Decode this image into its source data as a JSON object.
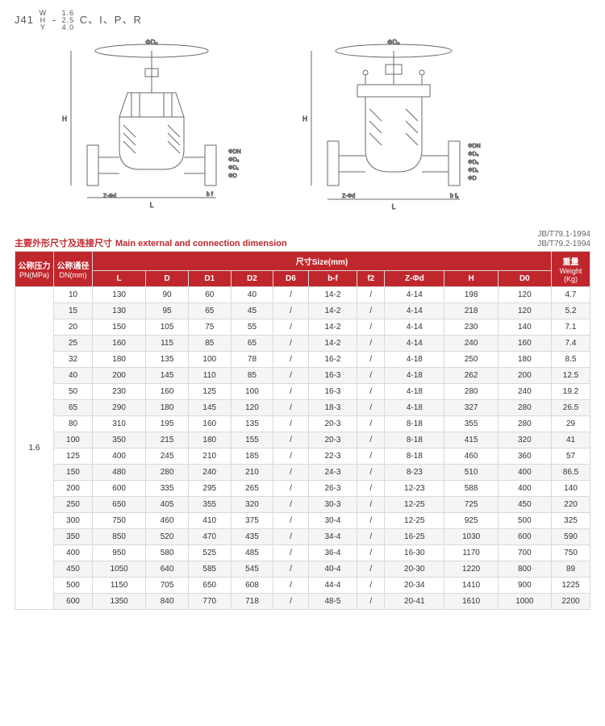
{
  "model": {
    "prefix": "J41",
    "stack_top": "W",
    "stack_mid": "H",
    "stack_bot": "Y",
    "frac_top": "1.6",
    "frac_mid": "2.5",
    "frac_bot": "4.0",
    "suffix": "C、I、P、R"
  },
  "caption": {
    "cn": "主要外形尺寸及连接尺寸",
    "en": "Main external and connection dimension"
  },
  "standards": {
    "a": "JB/T79.1-1994",
    "b": "JB/T79.2-1994"
  },
  "header": {
    "pn": "公称压力",
    "pn_unit": "PN(MPa)",
    "dn": "公称通径",
    "dn_unit": "DN(mm)",
    "size": "尺寸Size(mm)",
    "weight": "重量",
    "weight_unit": "Weight",
    "weight_kg": "(Kg)",
    "cols": [
      "L",
      "D",
      "D1",
      "D2",
      "D6",
      "b-f",
      "f2",
      "Z-Φd",
      "H",
      "D0"
    ]
  },
  "table": {
    "pn_value": "1.6",
    "columns": [
      "DN",
      "L",
      "D",
      "D1",
      "D2",
      "D6",
      "b-f",
      "f2",
      "Z-Φd",
      "H",
      "D0",
      "Weight"
    ],
    "rows": [
      [
        "10",
        "130",
        "90",
        "60",
        "40",
        "/",
        "14-2",
        "/",
        "4-14",
        "198",
        "120",
        "4.7"
      ],
      [
        "15",
        "130",
        "95",
        "65",
        "45",
        "/",
        "14-2",
        "/",
        "4-14",
        "218",
        "120",
        "5.2"
      ],
      [
        "20",
        "150",
        "105",
        "75",
        "55",
        "/",
        "14-2",
        "/",
        "4-14",
        "230",
        "140",
        "7.1"
      ],
      [
        "25",
        "160",
        "115",
        "85",
        "65",
        "/",
        "14-2",
        "/",
        "4-14",
        "240",
        "160",
        "7.4"
      ],
      [
        "32",
        "180",
        "135",
        "100",
        "78",
        "/",
        "16-2",
        "/",
        "4-18",
        "250",
        "180",
        "8.5"
      ],
      [
        "40",
        "200",
        "145",
        "110",
        "85",
        "/",
        "16-3",
        "/",
        "4-18",
        "262",
        "200",
        "12.5"
      ],
      [
        "50",
        "230",
        "160",
        "125",
        "100",
        "/",
        "16-3",
        "/",
        "4-18",
        "280",
        "240",
        "19.2"
      ],
      [
        "65",
        "290",
        "180",
        "145",
        "120",
        "/",
        "18-3",
        "/",
        "4-18",
        "327",
        "280",
        "26.5"
      ],
      [
        "80",
        "310",
        "195",
        "160",
        "135",
        "/",
        "20-3",
        "/",
        "8-18",
        "355",
        "280",
        "29"
      ],
      [
        "100",
        "350",
        "215",
        "180",
        "155",
        "/",
        "20-3",
        "/",
        "8-18",
        "415",
        "320",
        "41"
      ],
      [
        "125",
        "400",
        "245",
        "210",
        "185",
        "/",
        "22-3",
        "/",
        "8-18",
        "460",
        "360",
        "57"
      ],
      [
        "150",
        "480",
        "280",
        "240",
        "210",
        "/",
        "24-3",
        "/",
        "8-23",
        "510",
        "400",
        "86.5"
      ],
      [
        "200",
        "600",
        "335",
        "295",
        "265",
        "/",
        "26-3",
        "/",
        "12-23",
        "588",
        "400",
        "140"
      ],
      [
        "250",
        "650",
        "405",
        "355",
        "320",
        "/",
        "30-3",
        "/",
        "12-25",
        "725",
        "450",
        "220"
      ],
      [
        "300",
        "750",
        "460",
        "410",
        "375",
        "/",
        "30-4",
        "/",
        "12-25",
        "925",
        "500",
        "325"
      ],
      [
        "350",
        "850",
        "520",
        "470",
        "435",
        "/",
        "34-4",
        "/",
        "16-25",
        "1030",
        "600",
        "590"
      ],
      [
        "400",
        "950",
        "580",
        "525",
        "485",
        "/",
        "36-4",
        "/",
        "16-30",
        "1170",
        "700",
        "750"
      ],
      [
        "450",
        "1050",
        "640",
        "585",
        "545",
        "/",
        "40-4",
        "/",
        "20-30",
        "1220",
        "800",
        "89"
      ],
      [
        "500",
        "1150",
        "705",
        "650",
        "608",
        "/",
        "44-4",
        "/",
        "20-34",
        "1410",
        "900",
        "1225"
      ],
      [
        "600",
        "1350",
        "840",
        "770",
        "718",
        "/",
        "48-5",
        "/",
        "20-41",
        "1610",
        "1000",
        "2200"
      ]
    ]
  },
  "colors": {
    "brand": "#c0272d",
    "grid": "#d9d9d9",
    "alt_row": "#f5f5f5",
    "text": "#333",
    "draw": "#6a6a6a"
  }
}
